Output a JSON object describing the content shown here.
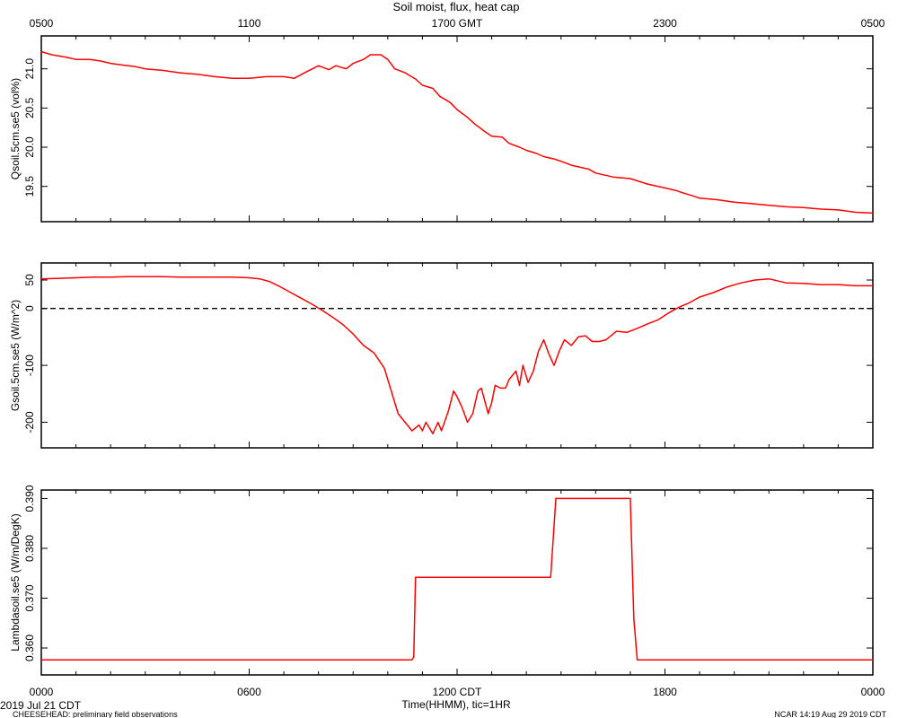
{
  "figure": {
    "title": "Soil moist, flux, heat cap",
    "top_axis": {
      "ticks": [
        {
          "hours": 0,
          "label": "0500"
        },
        {
          "hours": 6,
          "label": "1100"
        },
        {
          "hours": 12,
          "label": "1700 GMT"
        },
        {
          "hours": 18,
          "label": "2300"
        },
        {
          "hours": 24,
          "label": "0500"
        }
      ]
    },
    "bottom_axis": {
      "ticks": [
        {
          "hours": 0,
          "label": "0000"
        },
        {
          "hours": 6,
          "label": "0600"
        },
        {
          "hours": 12,
          "label": "1200 CDT"
        },
        {
          "hours": 18,
          "label": "1800"
        },
        {
          "hours": 24,
          "label": "0000"
        }
      ],
      "xlabel": "Time(HHMM), tic=1HR"
    },
    "footer": {
      "date": "2019 Jul 21 CDT",
      "project": "CHEESEHEAD: preliminary field observations",
      "credit": "NCAR 14:19 Aug 29 2019 CDT"
    },
    "line_color": "#ff0000"
  },
  "chart_data": [
    {
      "type": "line",
      "ylabel": "Qsoil.5cm.se5 (vol%)",
      "ylim": [
        19.05,
        21.42
      ],
      "yticks": [
        19.5,
        20.0,
        20.5,
        21.0
      ],
      "ytick_labels": [
        "19.5",
        "20.0",
        "20.5",
        "21.0"
      ],
      "xlim": [
        0,
        24
      ],
      "x": [
        0,
        0.3,
        0.7,
        1,
        1.4,
        1.7,
        2,
        2.3,
        2.7,
        3,
        3.5,
        4,
        4.5,
        5,
        5.5,
        6,
        6.5,
        7,
        7.3,
        7.6,
        8,
        8.3,
        8.5,
        8.8,
        9,
        9.3,
        9.5,
        9.8,
        10,
        10.2,
        10.5,
        10.8,
        11,
        11.3,
        11.5,
        11.8,
        12,
        12.3,
        12.5,
        12.8,
        13,
        13.3,
        13.5,
        13.8,
        14,
        14.3,
        14.5,
        14.8,
        15,
        15.3,
        15.5,
        15.8,
        16,
        16.5,
        17,
        17.5,
        18,
        18.3,
        18.5,
        18.8,
        19,
        19.5,
        20,
        20.5,
        21,
        21.5,
        22,
        22.5,
        23,
        23.5,
        24
      ],
      "y": [
        21.22,
        21.18,
        21.15,
        21.12,
        21.12,
        21.1,
        21.07,
        21.05,
        21.03,
        21.0,
        20.98,
        20.95,
        20.93,
        20.9,
        20.88,
        20.88,
        20.9,
        20.9,
        20.88,
        20.95,
        21.04,
        20.99,
        21.04,
        21.0,
        21.07,
        21.12,
        21.18,
        21.18,
        21.12,
        21.0,
        20.95,
        20.87,
        20.79,
        20.75,
        20.65,
        20.57,
        20.48,
        20.38,
        20.3,
        20.2,
        20.14,
        20.13,
        20.05,
        20.0,
        19.96,
        19.92,
        19.88,
        19.85,
        19.82,
        19.77,
        19.75,
        19.72,
        19.67,
        19.62,
        19.6,
        19.53,
        19.48,
        19.45,
        19.42,
        19.38,
        19.35,
        19.33,
        19.3,
        19.28,
        19.26,
        19.24,
        19.23,
        19.21,
        19.2,
        19.17,
        19.16
      ]
    },
    {
      "type": "line",
      "ylabel": "Gsoil.5cm.se5 (W/m^2)",
      "ylim": [
        -245,
        80
      ],
      "yticks": [
        -200,
        -100,
        0,
        50
      ],
      "ytick_labels": [
        "-200",
        "-100",
        "0",
        "50"
      ],
      "xlim": [
        0,
        24
      ],
      "zero_line": true,
      "x": [
        0,
        0.5,
        1,
        1.5,
        2,
        2.5,
        3,
        3.5,
        4,
        4.5,
        5,
        5.5,
        6,
        6.3,
        6.6,
        6.9,
        7.2,
        7.5,
        7.8,
        8.1,
        8.4,
        8.7,
        9.0,
        9.3,
        9.6,
        9.9,
        10.1,
        10.3,
        10.5,
        10.7,
        10.9,
        11.0,
        11.1,
        11.3,
        11.45,
        11.55,
        11.75,
        11.9,
        12.0,
        12.15,
        12.3,
        12.45,
        12.6,
        12.7,
        12.9,
        13.0,
        13.1,
        13.25,
        13.4,
        13.5,
        13.7,
        13.8,
        13.9,
        14.05,
        14.2,
        14.35,
        14.5,
        14.65,
        14.8,
        14.95,
        15.1,
        15.3,
        15.5,
        15.7,
        15.9,
        16.1,
        16.3,
        16.6,
        16.9,
        17.2,
        17.5,
        17.8,
        18.1,
        18.4,
        18.7,
        19.0,
        19.4,
        19.8,
        20.2,
        20.6,
        21.0,
        21.5,
        22.0,
        22.5,
        23.0,
        23.5,
        24.0
      ],
      "y": [
        52,
        53,
        54,
        55,
        55,
        56,
        56,
        56,
        55,
        55,
        55,
        55,
        54,
        52,
        47,
        38,
        28,
        18,
        8,
        -3,
        -15,
        -28,
        -45,
        -65,
        -78,
        -105,
        -145,
        -185,
        -200,
        -215,
        -205,
        -215,
        -200,
        -220,
        -200,
        -215,
        -180,
        -145,
        -155,
        -175,
        -200,
        -185,
        -145,
        -140,
        -185,
        -165,
        -135,
        -140,
        -140,
        -125,
        -110,
        -135,
        -100,
        -130,
        -110,
        -75,
        -55,
        -80,
        -100,
        -75,
        -55,
        -65,
        -50,
        -48,
        -58,
        -58,
        -55,
        -40,
        -42,
        -35,
        -27,
        -20,
        -8,
        2,
        10,
        20,
        28,
        38,
        45,
        50,
        52,
        45,
        44,
        42,
        42,
        40,
        40
      ]
    },
    {
      "type": "line",
      "ylabel": "Lambdasoil.se5 (W/m/DegK)",
      "ylim": [
        0.3546,
        0.3917
      ],
      "yticks": [
        0.36,
        0.37,
        0.38,
        0.39
      ],
      "ytick_labels": [
        "0.360",
        "0.370",
        "0.380",
        "0.390"
      ],
      "xlim": [
        0,
        24
      ],
      "x": [
        0,
        10.7,
        10.75,
        10.8,
        14.7,
        14.85,
        17.0,
        17.1,
        17.2,
        24
      ],
      "y": [
        0.3576,
        0.3576,
        0.3582,
        0.3742,
        0.3742,
        0.39,
        0.39,
        0.366,
        0.3576,
        0.3576
      ]
    }
  ]
}
